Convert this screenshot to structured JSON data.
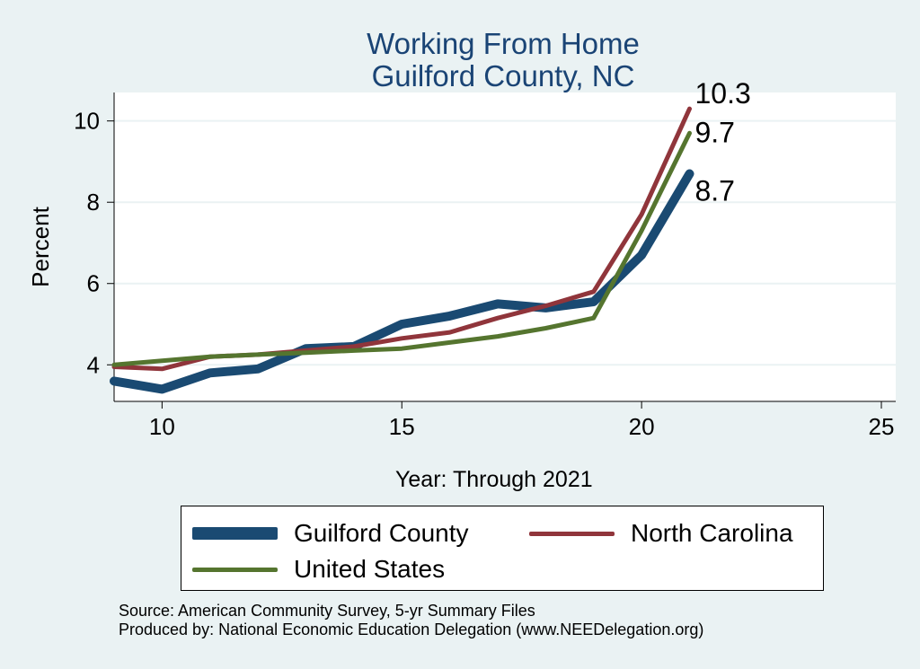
{
  "chart_data": {
    "type": "line",
    "title": [
      "Working From Home",
      "Guilford County, NC"
    ],
    "xlabel": "Year: Through 2021",
    "ylabel": "Percent",
    "xlim": [
      9,
      25.3
    ],
    "ylim": [
      3.1,
      10.7
    ],
    "xticks": [
      10,
      15,
      20,
      25
    ],
    "yticks": [
      4,
      6,
      8,
      10
    ],
    "grid": true,
    "legend_position": "bottom",
    "series": [
      {
        "name": "Guilford County",
        "color": "#1a4a72",
        "x": [
          9,
          10,
          11,
          12,
          13,
          14,
          15,
          16,
          17,
          18,
          19,
          20,
          21
        ],
        "values": [
          3.6,
          3.4,
          3.8,
          3.9,
          4.4,
          4.45,
          5.0,
          5.2,
          5.5,
          5.4,
          5.55,
          6.7,
          8.7
        ],
        "end_label": "8.7"
      },
      {
        "name": "North Carolina",
        "color": "#90353b",
        "x": [
          9,
          10,
          11,
          12,
          13,
          14,
          15,
          16,
          17,
          18,
          19,
          20,
          21
        ],
        "values": [
          3.95,
          3.9,
          4.2,
          4.25,
          4.35,
          4.45,
          4.65,
          4.8,
          5.15,
          5.45,
          5.8,
          7.7,
          10.3
        ],
        "end_label": "10.3"
      },
      {
        "name": "United States",
        "color": "#55752f",
        "x": [
          9,
          10,
          11,
          12,
          13,
          14,
          15,
          16,
          17,
          18,
          19,
          20,
          21
        ],
        "values": [
          4.0,
          4.1,
          4.2,
          4.25,
          4.3,
          4.35,
          4.4,
          4.55,
          4.7,
          4.9,
          5.15,
          7.3,
          9.7
        ],
        "end_label": "9.7"
      }
    ]
  },
  "source": {
    "line1": "Source: American Community Survey, 5-yr Summary Files",
    "line2": "Produced by: National Economic Education Delegation (www.NEEDelegation.org)"
  }
}
